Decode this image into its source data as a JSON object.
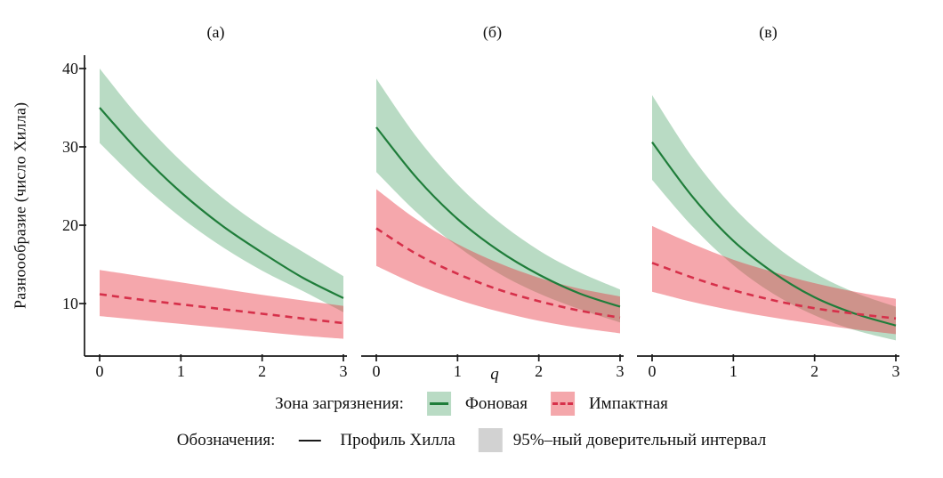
{
  "figure": {
    "y_axis_label": "Разноообразие (число Хилла)",
    "x_axis_label": "q",
    "y_ticks": [
      40,
      30,
      20,
      10
    ],
    "x_ticks": [
      0,
      1,
      2,
      3
    ]
  },
  "legend": {
    "zone_title": "Зона загрязнения:",
    "background_label": "Фоновая",
    "impact_label": "Импактная",
    "keys_title": "Обозначения:",
    "profile_label": "Профиль Хилла",
    "ci_label": "95%–ный доверительный интервал"
  },
  "colors": {
    "background_line": "#1f7d3a",
    "background_band": "rgba(70,160,100,0.38)",
    "impact_line": "#d6304a",
    "impact_band": "rgba(232,60,70,0.45)",
    "axis": "#1a1a1a",
    "ci_swatch": "#d2d2d2"
  },
  "chart_data": [
    {
      "type": "line",
      "title": "(а)",
      "xlabel": "q",
      "ylabel": "Разноообразие (число Хилла)",
      "x": [
        0,
        0.5,
        1,
        1.5,
        2,
        2.5,
        3
      ],
      "xlim": [
        0,
        3
      ],
      "ylim": [
        3.3,
        41.7
      ],
      "has_y_axis": true,
      "series": [
        {
          "name": "Фоновая",
          "dashed": false,
          "line": [
            35.0,
            29.2,
            24.2,
            20.0,
            16.5,
            13.3,
            10.7
          ],
          "upper": [
            40.0,
            33.6,
            28.2,
            23.6,
            19.8,
            16.6,
            13.5
          ],
          "lower": [
            30.5,
            25.4,
            21.0,
            17.3,
            14.2,
            11.6,
            8.9
          ]
        },
        {
          "name": "Импактная",
          "dashed": true,
          "line": [
            11.2,
            10.5,
            9.9,
            9.3,
            8.7,
            8.1,
            7.5
          ],
          "upper": [
            14.3,
            13.5,
            12.7,
            11.9,
            11.1,
            10.4,
            9.7
          ],
          "lower": [
            8.4,
            7.9,
            7.4,
            6.9,
            6.4,
            5.9,
            5.5
          ]
        }
      ]
    },
    {
      "type": "line",
      "title": "(б)",
      "xlabel": "q",
      "x": [
        0,
        0.5,
        1,
        1.5,
        2,
        2.5,
        3
      ],
      "xlim": [
        0,
        3
      ],
      "ylim": [
        3.3,
        41.7
      ],
      "has_y_axis": false,
      "series": [
        {
          "name": "Фоновая",
          "dashed": false,
          "line": [
            32.5,
            26.0,
            20.8,
            16.8,
            13.7,
            11.3,
            9.6
          ],
          "upper": [
            38.7,
            31.2,
            25.2,
            20.5,
            16.8,
            14.0,
            11.8
          ],
          "lower": [
            26.8,
            21.6,
            17.3,
            13.9,
            11.3,
            9.3,
            7.6
          ]
        },
        {
          "name": "Импактная",
          "dashed": true,
          "line": [
            19.6,
            16.3,
            13.8,
            11.8,
            10.3,
            9.1,
            8.2
          ],
          "upper": [
            24.6,
            20.7,
            17.6,
            15.2,
            13.3,
            11.9,
            10.9
          ],
          "lower": [
            14.8,
            12.4,
            10.5,
            9.0,
            7.8,
            6.9,
            6.2
          ]
        }
      ]
    },
    {
      "type": "line",
      "title": "(в)",
      "xlabel": "q",
      "x": [
        0,
        0.5,
        1,
        1.5,
        2,
        2.5,
        3
      ],
      "xlim": [
        0,
        3
      ],
      "ylim": [
        3.3,
        41.7
      ],
      "has_y_axis": false,
      "series": [
        {
          "name": "Фоновая",
          "dashed": false,
          "line": [
            30.6,
            23.6,
            18.0,
            13.9,
            10.8,
            8.7,
            7.2
          ],
          "upper": [
            36.6,
            28.6,
            22.3,
            17.5,
            13.9,
            11.4,
            9.6
          ],
          "lower": [
            25.8,
            19.8,
            14.9,
            11.2,
            8.5,
            6.6,
            5.3
          ]
        },
        {
          "name": "Импактная",
          "dashed": true,
          "line": [
            15.2,
            13.3,
            11.7,
            10.4,
            9.4,
            8.7,
            8.1
          ],
          "upper": [
            19.9,
            17.6,
            15.6,
            14.0,
            12.6,
            11.5,
            10.6
          ],
          "lower": [
            11.5,
            10.2,
            9.1,
            8.2,
            7.4,
            6.7,
            6.1
          ]
        }
      ]
    }
  ]
}
